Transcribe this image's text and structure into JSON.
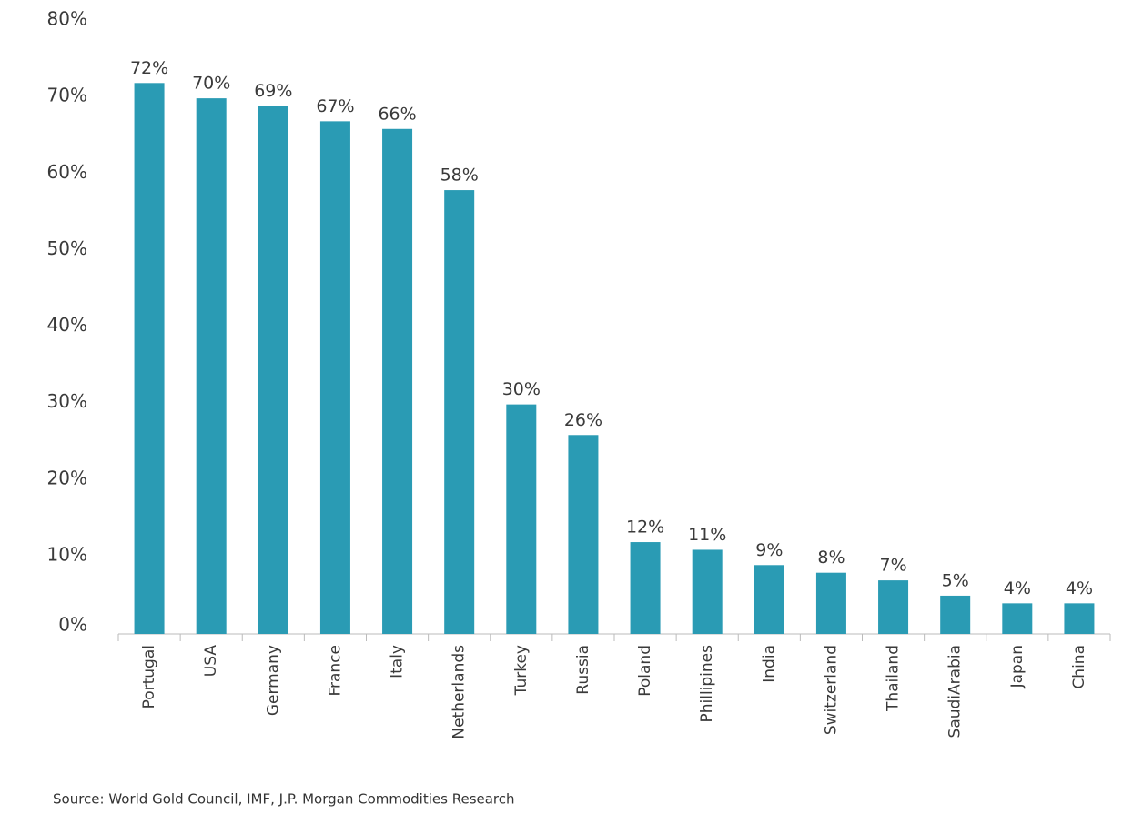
{
  "chart_data": {
    "type": "bar",
    "categories": [
      "Portugal",
      "USA",
      "Germany",
      "France",
      "Italy",
      "Netherlands",
      "Turkey",
      "Russia",
      "Poland",
      "Phillipines",
      "India",
      "Switzerland",
      "Thailand",
      "SaudiArabia",
      "Japan",
      "China"
    ],
    "values": [
      72,
      70,
      69,
      67,
      66,
      58,
      30,
      26,
      12,
      11,
      9,
      8,
      7,
      5,
      4,
      4
    ],
    "value_labels": [
      "72%",
      "70%",
      "69%",
      "67%",
      "66%",
      "58%",
      "30%",
      "26%",
      "12%",
      "11%",
      "9%",
      "8%",
      "7%",
      "5%",
      "4%",
      "4%"
    ],
    "color": "#2a9bb4",
    "ylim": [
      0,
      80
    ],
    "yticks": [
      {
        "value": 0,
        "label": "0%"
      },
      {
        "value": 10,
        "label": "10%"
      },
      {
        "value": 20,
        "label": "20%"
      },
      {
        "value": 30,
        "label": "30%"
      },
      {
        "value": 40,
        "label": "40%"
      },
      {
        "value": 50,
        "label": "50%"
      },
      {
        "value": 60,
        "label": "60%"
      },
      {
        "value": 70,
        "label": "70%"
      },
      {
        "value": 80,
        "label": "80%"
      }
    ],
    "grid": false,
    "source": "Source: World Gold Council, IMF, J.P. Morgan Commodities Research"
  }
}
